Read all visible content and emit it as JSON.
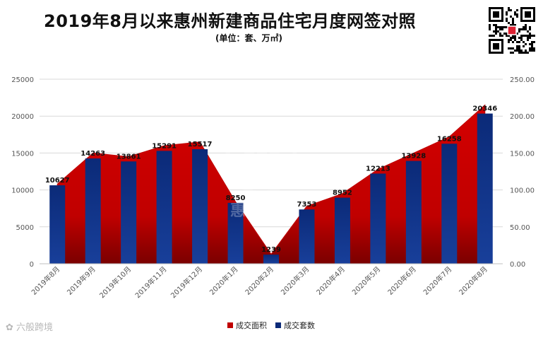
{
  "header": {
    "title": "2019年8月以来惠州新建商品住宅月度网签对照",
    "subtitle": "(单位：套、万㎡)"
  },
  "watermark": {
    "center_text": "惠民之家",
    "bottom_left": "六般跨境"
  },
  "colors": {
    "area": "#c00000",
    "area_light": "#e83a3a",
    "bar": "#0b2a78",
    "bar_light": "#1a4fb0",
    "grid": "#d9d9d9",
    "axis_text": "#555555"
  },
  "chart_data": {
    "type": "bar",
    "categories": [
      "2019年8月",
      "2019年9月",
      "2019年10月",
      "2019年11月",
      "2019年12月",
      "2020年1月",
      "2020年2月",
      "2020年3月",
      "2020年4月",
      "2020年5月",
      "2020年6月",
      "2020年7月",
      "2020年8月"
    ],
    "series": [
      {
        "name": "成交面积",
        "type": "area",
        "axis": "right",
        "values": [
          108.0,
          150.0,
          145.0,
          160.0,
          165.0,
          84.0,
          13.0,
          78.0,
          95.0,
          128.0,
          150.0,
          172.0,
          215.0
        ]
      },
      {
        "name": "成交套数",
        "type": "bar",
        "axis": "left",
        "values": [
          10627,
          14263,
          13861,
          15291,
          15517,
          8250,
          1239,
          7353,
          8952,
          12213,
          13928,
          16258,
          20346
        ]
      }
    ],
    "ylim_left": [
      0,
      25000
    ],
    "yticks_left": [
      "0",
      "5000",
      "10000",
      "15000",
      "20000",
      "25000"
    ],
    "ylim_right": [
      0,
      250
    ],
    "yticks_right": [
      "0.00",
      "50.00",
      "100.00",
      "150.00",
      "200.00",
      "250.00"
    ],
    "grid": true,
    "legend": "bottom"
  }
}
